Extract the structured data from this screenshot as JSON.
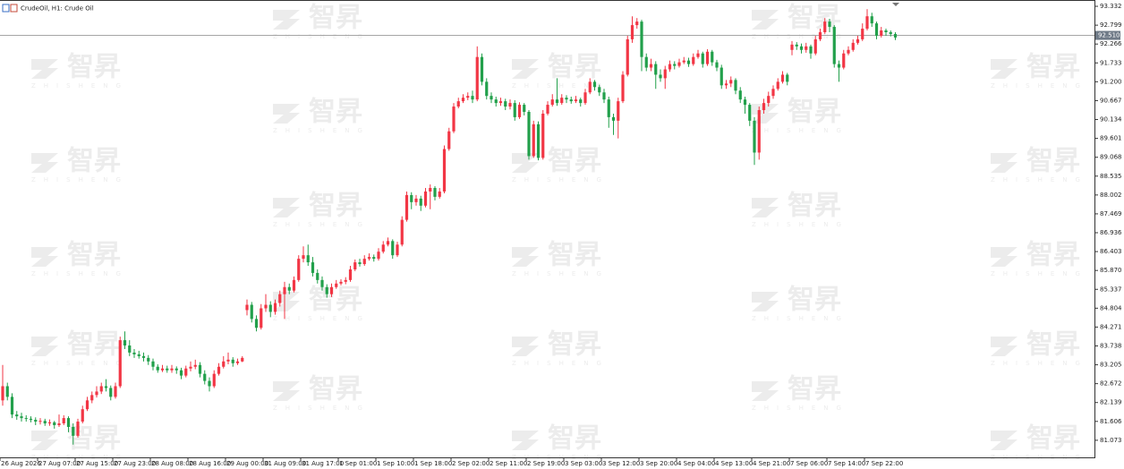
{
  "chart_data": {
    "type": "candlestick",
    "title": "CrudeOil, H1:  Crude Oil",
    "watermark": {
      "text": "智昇",
      "subtext": "ZHISHENG"
    },
    "up_color": "#f23645",
    "down_color": "#22a04b",
    "ylim": [
      80.59,
      93.51
    ],
    "yticks": [
      {
        "value": 81.073,
        "label": "81.073"
      },
      {
        "value": 81.606,
        "label": "81.606"
      },
      {
        "value": 82.139,
        "label": "82.139"
      },
      {
        "value": 82.672,
        "label": "82.672"
      },
      {
        "value": 83.205,
        "label": "83.205"
      },
      {
        "value": 83.738,
        "label": "83.738"
      },
      {
        "value": 84.271,
        "label": "84.271"
      },
      {
        "value": 84.804,
        "label": "84.804"
      },
      {
        "value": 85.337,
        "label": "85.337"
      },
      {
        "value": 85.87,
        "label": "85.870"
      },
      {
        "value": 86.403,
        "label": "86.403"
      },
      {
        "value": 86.936,
        "label": "86.936"
      },
      {
        "value": 87.469,
        "label": "87.469"
      },
      {
        "value": 88.002,
        "label": "88.002"
      },
      {
        "value": 88.535,
        "label": "88.535"
      },
      {
        "value": 89.068,
        "label": "89.068"
      },
      {
        "value": 89.601,
        "label": "89.601"
      },
      {
        "value": 90.134,
        "label": "90.134"
      },
      {
        "value": 90.667,
        "label": "90.667"
      },
      {
        "value": 91.2,
        "label": "91.200"
      },
      {
        "value": 91.733,
        "label": "91.733"
      },
      {
        "value": 92.266,
        "label": "92.266"
      },
      {
        "value": 92.799,
        "label": "92.799"
      },
      {
        "value": 93.332,
        "label": "93.332"
      }
    ],
    "current_price": {
      "value": 92.51,
      "label": "92.510"
    },
    "categories": [
      "26 Aug 2026",
      null,
      null,
      null,
      null,
      null,
      null,
      null,
      "27 Aug 07:00",
      null,
      null,
      null,
      null,
      null,
      null,
      null,
      "27 Aug 15:00",
      null,
      null,
      null,
      null,
      null,
      null,
      null,
      "27 Aug 23:00",
      null,
      null,
      null,
      null,
      null,
      null,
      null,
      "28 Aug 08:00",
      null,
      null,
      null,
      null,
      null,
      null,
      null,
      "28 Aug 16:00",
      null,
      null,
      null,
      null,
      null,
      null,
      null,
      "29 Aug 00:00",
      null,
      null,
      null,
      null,
      null,
      null,
      null,
      "31 Aug 09:00",
      null,
      null,
      null,
      null,
      null,
      null,
      null,
      "31 Aug 17:00",
      null,
      null,
      null,
      null,
      null,
      null,
      null,
      "1 Sep 01:00",
      null,
      null,
      null,
      null,
      null,
      null,
      null,
      "1 Sep 10:00",
      null,
      null,
      null,
      null,
      null,
      null,
      null,
      "1 Sep 18:00",
      null,
      null,
      null,
      null,
      null,
      null,
      null,
      "2 Sep 02:00",
      null,
      null,
      null,
      null,
      null,
      null,
      null,
      "2 Sep 11:00",
      null,
      null,
      null,
      null,
      null,
      null,
      null,
      "2 Sep 19:00",
      null,
      null,
      null,
      null,
      null,
      null,
      null,
      "3 Sep 03:00",
      null,
      null,
      null,
      null,
      null,
      null,
      null,
      "3 Sep 12:00",
      null,
      null,
      null,
      null,
      null,
      null,
      null,
      "3 Sep 20:00",
      null,
      null,
      null,
      null,
      null,
      null,
      null,
      "4 Sep 04:00",
      null,
      null,
      null,
      null,
      null,
      null,
      null,
      "4 Sep 13:00",
      null,
      null,
      null,
      null,
      null,
      null,
      null,
      "4 Sep 21:00",
      null,
      null,
      null,
      null,
      null,
      null,
      null,
      "7 Sep 06:00",
      null,
      null,
      null,
      null,
      null,
      null,
      null,
      "7 Sep 14:00",
      null,
      null,
      null,
      null,
      null,
      null,
      null,
      "7 Sep 22:00",
      null,
      null,
      null,
      null,
      null,
      null
    ],
    "candles": [
      [
        82.2,
        83.2,
        82.05,
        82.6
      ],
      [
        82.6,
        82.7,
        82.2,
        82.3
      ],
      [
        82.3,
        82.4,
        81.7,
        81.8
      ],
      [
        81.8,
        81.9,
        81.65,
        81.75
      ],
      [
        81.75,
        81.85,
        81.6,
        81.7
      ],
      [
        81.7,
        81.78,
        81.6,
        81.68
      ],
      [
        81.68,
        81.75,
        81.58,
        81.65
      ],
      [
        81.65,
        81.72,
        81.5,
        81.6
      ],
      [
        81.6,
        81.7,
        81.52,
        81.62
      ],
      [
        81.62,
        81.68,
        81.48,
        81.55
      ],
      [
        81.55,
        81.66,
        81.48,
        81.58
      ],
      [
        81.58,
        81.62,
        81.4,
        81.5
      ],
      [
        81.5,
        81.8,
        81.45,
        81.55
      ],
      [
        81.55,
        81.78,
        81.5,
        81.7
      ],
      [
        81.7,
        81.75,
        81.3,
        81.45
      ],
      [
        81.45,
        81.55,
        80.95,
        81.2
      ],
      [
        81.2,
        81.68,
        81.15,
        81.6
      ],
      [
        81.6,
        82.05,
        81.55,
        81.95
      ],
      [
        81.95,
        82.3,
        81.9,
        82.2
      ],
      [
        82.2,
        82.45,
        82.12,
        82.35
      ],
      [
        82.35,
        82.6,
        82.28,
        82.45
      ],
      [
        82.45,
        82.7,
        82.38,
        82.6
      ],
      [
        82.6,
        82.8,
        82.45,
        82.55
      ],
      [
        82.55,
        82.62,
        82.2,
        82.3
      ],
      [
        82.3,
        82.7,
        82.25,
        82.6
      ],
      [
        82.6,
        84.0,
        82.55,
        83.9
      ],
      [
        83.9,
        84.15,
        83.65,
        83.75
      ],
      [
        83.75,
        83.9,
        83.45,
        83.55
      ],
      [
        83.55,
        83.65,
        83.4,
        83.5
      ],
      [
        83.5,
        83.6,
        83.38,
        83.45
      ],
      [
        83.45,
        83.55,
        83.3,
        83.4
      ],
      [
        83.4,
        83.48,
        83.2,
        83.3
      ],
      [
        83.3,
        83.38,
        83.05,
        83.15
      ],
      [
        83.15,
        83.22,
        82.98,
        83.05
      ],
      [
        83.05,
        83.2,
        83.0,
        83.1
      ],
      [
        83.1,
        83.18,
        82.98,
        83.05
      ],
      [
        83.05,
        83.2,
        82.98,
        83.1
      ],
      [
        83.1,
        83.16,
        82.95,
        83.05
      ],
      [
        83.05,
        83.12,
        82.8,
        82.9
      ],
      [
        82.9,
        83.18,
        82.85,
        83.1
      ],
      [
        83.1,
        83.3,
        83.02,
        83.15
      ],
      [
        83.15,
        83.35,
        83.08,
        83.2
      ],
      [
        83.2,
        83.28,
        82.85,
        82.95
      ],
      [
        82.95,
        83.05,
        82.65,
        82.75
      ],
      [
        82.75,
        82.85,
        82.45,
        82.6
      ],
      [
        82.6,
        83.05,
        82.55,
        82.95
      ],
      [
        82.95,
        83.25,
        82.9,
        83.15
      ],
      [
        83.15,
        83.45,
        83.1,
        83.3
      ],
      [
        83.3,
        83.55,
        83.22,
        83.35
      ],
      [
        83.35,
        83.42,
        83.15,
        83.25
      ],
      [
        83.25,
        83.38,
        83.2,
        83.3
      ],
      [
        83.3,
        83.45,
        83.28,
        83.4
      ],
      [
        84.75,
        85.05,
        84.6,
        84.9
      ],
      [
        84.9,
        84.98,
        84.4,
        84.5
      ],
      [
        84.5,
        84.6,
        84.15,
        84.25
      ],
      [
        84.25,
        84.92,
        84.2,
        84.8
      ],
      [
        84.8,
        85.2,
        84.7,
        84.9
      ],
      [
        84.9,
        85.0,
        84.55,
        84.7
      ],
      [
        84.7,
        85.05,
        84.62,
        84.95
      ],
      [
        84.95,
        85.3,
        84.85,
        85.2
      ],
      [
        85.2,
        85.55,
        84.5,
        85.4
      ],
      [
        85.4,
        85.5,
        85.2,
        85.3
      ],
      [
        85.3,
        85.7,
        85.25,
        85.6
      ],
      [
        85.6,
        86.3,
        85.55,
        86.2
      ],
      [
        86.2,
        86.55,
        86.1,
        86.3
      ],
      [
        86.3,
        86.6,
        86.0,
        86.1
      ],
      [
        86.1,
        86.25,
        85.7,
        85.8
      ],
      [
        85.8,
        85.9,
        85.5,
        85.6
      ],
      [
        85.6,
        85.7,
        85.3,
        85.4
      ],
      [
        85.4,
        85.48,
        85.1,
        85.2
      ],
      [
        85.2,
        85.5,
        85.12,
        85.4
      ],
      [
        85.4,
        85.6,
        85.35,
        85.5
      ],
      [
        85.5,
        85.62,
        85.45,
        85.55
      ],
      [
        85.55,
        85.68,
        85.48,
        85.6
      ],
      [
        85.6,
        86.0,
        85.55,
        85.9
      ],
      [
        85.9,
        86.18,
        85.85,
        86.1
      ],
      [
        86.1,
        86.2,
        85.98,
        86.05
      ],
      [
        86.05,
        86.3,
        86.0,
        86.2
      ],
      [
        86.2,
        86.35,
        86.15,
        86.25
      ],
      [
        86.25,
        86.32,
        86.12,
        86.2
      ],
      [
        86.2,
        86.5,
        86.15,
        86.4
      ],
      [
        86.4,
        86.7,
        86.35,
        86.6
      ],
      [
        86.6,
        86.8,
        86.55,
        86.7
      ],
      [
        86.7,
        86.75,
        86.2,
        86.3
      ],
      [
        86.3,
        86.68,
        86.25,
        86.6
      ],
      [
        86.6,
        87.4,
        86.55,
        87.3
      ],
      [
        87.3,
        88.1,
        87.25,
        88.0
      ],
      [
        88.0,
        88.08,
        87.6,
        87.8
      ],
      [
        87.8,
        88.0,
        87.7,
        87.9
      ],
      [
        87.9,
        87.98,
        87.55,
        87.7
      ],
      [
        87.7,
        88.2,
        87.65,
        88.1
      ],
      [
        88.1,
        88.3,
        87.6,
        88.2
      ],
      [
        88.2,
        88.25,
        87.85,
        87.95
      ],
      [
        87.95,
        88.2,
        87.9,
        88.1
      ],
      [
        88.1,
        89.4,
        88.05,
        89.3
      ],
      [
        89.3,
        89.9,
        89.25,
        89.8
      ],
      [
        89.8,
        90.6,
        89.75,
        90.5
      ],
      [
        90.5,
        90.75,
        90.45,
        90.65
      ],
      [
        90.65,
        90.85,
        90.6,
        90.75
      ],
      [
        90.75,
        90.9,
        90.68,
        90.8
      ],
      [
        90.8,
        90.95,
        90.6,
        90.7
      ],
      [
        90.7,
        92.2,
        90.65,
        91.9
      ],
      [
        91.9,
        92.0,
        91.1,
        91.2
      ],
      [
        91.2,
        91.3,
        90.7,
        90.8
      ],
      [
        90.8,
        90.9,
        90.6,
        90.7
      ],
      [
        90.7,
        90.78,
        90.5,
        90.6
      ],
      [
        90.6,
        90.75,
        90.52,
        90.65
      ],
      [
        90.65,
        90.72,
        90.4,
        90.5
      ],
      [
        90.5,
        90.7,
        90.42,
        90.6
      ],
      [
        90.6,
        90.68,
        90.1,
        90.2
      ],
      [
        90.2,
        90.62,
        90.15,
        90.55
      ],
      [
        90.55,
        90.6,
        90.25,
        90.35
      ],
      [
        90.35,
        90.4,
        89.0,
        89.1
      ],
      [
        89.1,
        90.1,
        89.05,
        90.0
      ],
      [
        90.0,
        90.08,
        88.98,
        89.05
      ],
      [
        89.05,
        90.4,
        89.0,
        90.3
      ],
      [
        90.3,
        90.65,
        90.25,
        90.55
      ],
      [
        90.55,
        90.85,
        90.5,
        90.7
      ],
      [
        90.7,
        91.3,
        90.52,
        90.6
      ],
      [
        90.6,
        90.85,
        90.55,
        90.75
      ],
      [
        90.75,
        90.82,
        90.6,
        90.7
      ],
      [
        90.7,
        90.78,
        90.58,
        90.65
      ],
      [
        90.65,
        90.8,
        90.6,
        90.7
      ],
      [
        90.7,
        90.75,
        90.5,
        90.6
      ],
      [
        90.6,
        91.0,
        90.55,
        90.9
      ],
      [
        90.9,
        91.3,
        90.85,
        91.2
      ],
      [
        91.2,
        91.25,
        90.95,
        91.05
      ],
      [
        91.05,
        91.12,
        90.8,
        90.9
      ],
      [
        90.9,
        91.0,
        90.6,
        90.7
      ],
      [
        90.7,
        90.78,
        89.9,
        90.2
      ],
      [
        90.2,
        90.3,
        89.7,
        90.1
      ],
      [
        90.1,
        90.75,
        89.6,
        90.65
      ],
      [
        90.65,
        91.5,
        90.6,
        91.4
      ],
      [
        91.4,
        92.5,
        91.35,
        92.4
      ],
      [
        92.4,
        93.05,
        92.3,
        92.8
      ],
      [
        92.8,
        93.0,
        92.7,
        92.9
      ],
      [
        92.9,
        92.95,
        91.5,
        91.9
      ],
      [
        91.9,
        92.0,
        91.5,
        91.6
      ],
      [
        91.6,
        91.85,
        91.5,
        91.7
      ],
      [
        91.7,
        91.78,
        91.0,
        91.4
      ],
      [
        91.4,
        91.55,
        91.2,
        91.3
      ],
      [
        91.3,
        91.65,
        91.0,
        91.55
      ],
      [
        91.55,
        91.8,
        91.48,
        91.7
      ],
      [
        91.7,
        91.78,
        91.55,
        91.65
      ],
      [
        91.65,
        91.85,
        91.6,
        91.75
      ],
      [
        91.75,
        91.9,
        91.7,
        91.8
      ],
      [
        91.8,
        91.88,
        91.62,
        91.7
      ],
      [
        91.7,
        92.0,
        91.65,
        91.9
      ],
      [
        91.9,
        92.1,
        91.85,
        92.0
      ],
      [
        92.0,
        92.05,
        91.6,
        91.7
      ],
      [
        91.7,
        92.12,
        91.65,
        92.05
      ],
      [
        92.05,
        92.1,
        91.65,
        91.75
      ],
      [
        91.75,
        91.82,
        91.5,
        91.6
      ],
      [
        91.6,
        91.68,
        91.0,
        91.1
      ],
      [
        91.1,
        91.25,
        91.0,
        91.15
      ],
      [
        91.15,
        91.35,
        91.05,
        91.25
      ],
      [
        91.25,
        91.3,
        90.85,
        90.95
      ],
      [
        90.95,
        91.05,
        90.6,
        90.7
      ],
      [
        90.7,
        90.78,
        90.3,
        90.55
      ],
      [
        90.55,
        90.6,
        89.95,
        90.1
      ],
      [
        90.1,
        90.2,
        88.85,
        89.2
      ],
      [
        89.2,
        90.5,
        89.0,
        90.4
      ],
      [
        90.4,
        90.72,
        90.3,
        90.6
      ],
      [
        90.6,
        90.92,
        90.5,
        90.8
      ],
      [
        90.8,
        91.1,
        90.72,
        91.0
      ],
      [
        91.0,
        91.3,
        90.95,
        91.2
      ],
      [
        91.2,
        91.5,
        91.15,
        91.4
      ],
      [
        91.4,
        91.45,
        91.1,
        91.2
      ],
      [
        92.1,
        92.35,
        91.95,
        92.25
      ],
      [
        92.25,
        92.32,
        92.1,
        92.2
      ],
      [
        92.2,
        92.28,
        92.0,
        92.1
      ],
      [
        92.1,
        92.3,
        92.02,
        92.2
      ],
      [
        92.2,
        92.25,
        91.85,
        92.0
      ],
      [
        92.0,
        92.5,
        91.95,
        92.4
      ],
      [
        92.4,
        92.7,
        92.35,
        92.6
      ],
      [
        92.6,
        93.0,
        92.55,
        92.9
      ],
      [
        92.9,
        92.98,
        92.6,
        92.75
      ],
      [
        92.75,
        92.8,
        91.6,
        91.7
      ],
      [
        91.7,
        91.8,
        91.2,
        91.6
      ],
      [
        91.6,
        92.1,
        91.55,
        92.0
      ],
      [
        92.0,
        92.2,
        91.95,
        92.1
      ],
      [
        92.1,
        92.4,
        92.05,
        92.3
      ],
      [
        92.3,
        92.5,
        92.25,
        92.4
      ],
      [
        92.4,
        92.85,
        92.35,
        92.7
      ],
      [
        92.7,
        93.25,
        92.65,
        93.05
      ],
      [
        93.05,
        93.15,
        92.75,
        92.85
      ],
      [
        92.85,
        92.9,
        92.4,
        92.5
      ],
      [
        92.5,
        92.75,
        92.45,
        92.65
      ],
      [
        92.65,
        92.7,
        92.5,
        92.6
      ],
      [
        92.6,
        92.65,
        92.48,
        92.55
      ],
      [
        92.55,
        92.6,
        92.38,
        92.45
      ]
    ]
  }
}
